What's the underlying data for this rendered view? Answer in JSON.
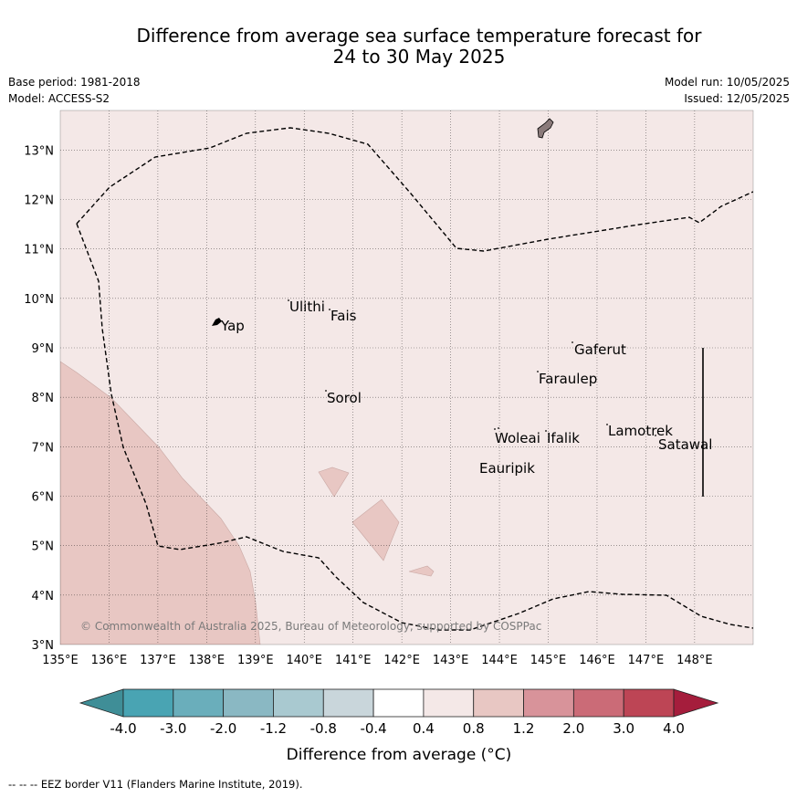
{
  "title_line1": "Difference from average sea surface temperature forecast for",
  "title_line2": "24 to 30 May 2025",
  "base_period": "Base period: 1981-2018",
  "model": "Model: ACCESS-S2",
  "model_run": "Model run: 10/05/2025",
  "issued": "Issued: 12/05/2025",
  "copyright": "© Commonwealth of Australia 2025, Bureau of Meteorology, supported by COSPPac",
  "footer": "--  --  -- EEZ border V11 (Flanders Marine Institute, 2019).",
  "colorbar_label": "Difference from average (°C)",
  "colorbar_ticks": [
    "-4.0",
    "-3.0",
    "-2.0",
    "-1.2",
    "-0.8",
    "-0.4",
    "0.4",
    "0.8",
    "1.2",
    "2.0",
    "3.0",
    "4.0"
  ],
  "colorbar_colors": [
    "#3f8e97",
    "#49a4b3",
    "#6aaebb",
    "#8ab8c3",
    "#a9c9d0",
    "#c9d6db",
    "#ffffff",
    "#f4e8e7",
    "#e8c7c3",
    "#d8939a",
    "#cb6b77",
    "#bd4555",
    "#a51d3c"
  ],
  "x_ticks": [
    "135°E",
    "136°E",
    "137°E",
    "138°E",
    "139°E",
    "140°E",
    "141°E",
    "142°E",
    "143°E",
    "144°E",
    "145°E",
    "146°E",
    "147°E",
    "148°E"
  ],
  "y_ticks": [
    "3°N",
    "4°N",
    "5°N",
    "6°N",
    "7°N",
    "8°N",
    "9°N",
    "10°N",
    "11°N",
    "12°N",
    "13°N"
  ],
  "background_color": "#f4e8e7",
  "anomaly_color": "#e8c7c3",
  "places": [
    "Ulithi",
    "Fais",
    "Yap",
    "Gaferut",
    "Faraulep",
    "Sorol",
    "Lamotrek",
    "Satawal",
    "Woleai",
    "Ifalik",
    "Eauripik"
  ]
}
